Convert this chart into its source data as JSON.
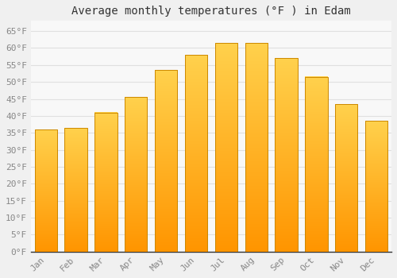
{
  "title": "Average monthly temperatures (°F ) in Edam",
  "months": [
    "Jan",
    "Feb",
    "Mar",
    "Apr",
    "May",
    "Jun",
    "Jul",
    "Aug",
    "Sep",
    "Oct",
    "Nov",
    "Dec"
  ],
  "values": [
    36,
    36.5,
    41,
    45.5,
    53.5,
    58,
    61.5,
    61.5,
    57,
    51.5,
    43.5,
    38.5
  ],
  "bar_color_top": "#FFB800",
  "bar_color_bottom": "#FF9500",
  "bar_edge_color": "#CC8800",
  "background_color": "#F0F0F0",
  "plot_bg_color": "#F8F8F8",
  "grid_color": "#E0E0E0",
  "ylim": [
    0,
    68
  ],
  "yticks": [
    0,
    5,
    10,
    15,
    20,
    25,
    30,
    35,
    40,
    45,
    50,
    55,
    60,
    65
  ],
  "ytick_labels": [
    "0°F",
    "5°F",
    "10°F",
    "15°F",
    "20°F",
    "25°F",
    "30°F",
    "35°F",
    "40°F",
    "45°F",
    "50°F",
    "55°F",
    "60°F",
    "65°F"
  ],
  "title_fontsize": 10,
  "tick_fontsize": 8,
  "tick_color": "#888888",
  "axis_color": "#333333",
  "bar_width": 0.75
}
